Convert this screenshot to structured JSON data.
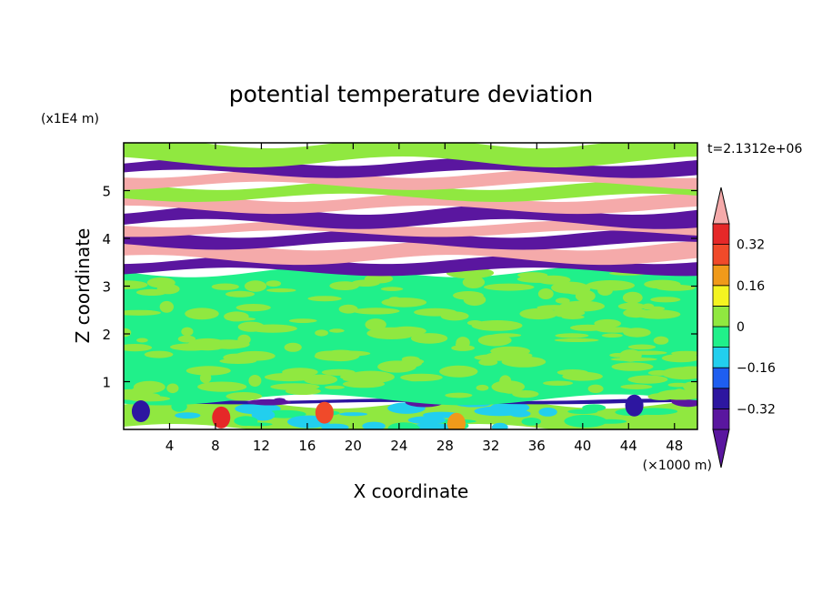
{
  "chart_data": {
    "type": "heatmap",
    "title": "potential temperature deviation",
    "xlabel": "X coordinate",
    "ylabel": "Z coordinate",
    "x_unit": "(×1000 m)",
    "y_unit": "(x1E4 m)",
    "time_label": "t=2.1312e+06",
    "xlim": [
      0,
      50
    ],
    "ylim": [
      0,
      6
    ],
    "x_ticks": [
      "4",
      "8",
      "12",
      "16",
      "20",
      "24",
      "28",
      "32",
      "36",
      "40",
      "44",
      "48"
    ],
    "y_ticks": [
      "1",
      "2",
      "3",
      "4",
      "5"
    ],
    "colorbar": {
      "labels": [
        "0.32",
        "0.16",
        "0",
        "−0.16",
        "−0.32"
      ],
      "label_values": [
        0.32,
        0.16,
        0,
        -0.16,
        -0.32
      ],
      "levels": [
        -0.4,
        -0.32,
        -0.24,
        -0.16,
        -0.08,
        0,
        0.08,
        0.16,
        0.24,
        0.32,
        0.4
      ],
      "colors": [
        "#5a169f",
        "#2d16a0",
        "#1e5ef0",
        "#22cfee",
        "#20f08a",
        "#90e840",
        "#f4f421",
        "#f09a1a",
        "#f04a2a",
        "#e52828",
        "#f5aaaa"
      ],
      "under_color": "#5a169f",
      "over_color": "#f5aaaa"
    },
    "bands": [
      {
        "z": [
          0.0,
          0.55
        ],
        "dominant": "#90e840",
        "secondary": [
          "#20f08a",
          "#22cfee"
        ]
      },
      {
        "z": [
          0.55,
          0.62
        ],
        "dominant": "#2d16a0",
        "secondary": [
          "#5a169f"
        ]
      },
      {
        "z": [
          0.62,
          3.3
        ],
        "dominant": "#20f08a",
        "secondary": [
          "#90e840"
        ]
      },
      {
        "z": [
          3.3,
          3.55
        ],
        "dominant": "#5a169f"
      },
      {
        "z": [
          3.55,
          3.85
        ],
        "dominant": "#f5aaaa"
      },
      {
        "z": [
          3.85,
          4.1
        ],
        "dominant": "#5a169f"
      },
      {
        "z": [
          4.1,
          4.3
        ],
        "dominant": "#f5aaaa"
      },
      {
        "z": [
          4.3,
          4.6
        ],
        "dominant": "#5a169f"
      },
      {
        "z": [
          4.6,
          4.85
        ],
        "dominant": "#f5aaaa"
      },
      {
        "z": [
          4.85,
          5.1
        ],
        "dominant": "#90e840"
      },
      {
        "z": [
          5.1,
          5.35
        ],
        "dominant": "#f5aaaa"
      },
      {
        "z": [
          5.35,
          5.6
        ],
        "dominant": "#5a169f"
      },
      {
        "z": [
          5.6,
          6.0
        ],
        "dominant": "#90e840"
      }
    ],
    "hot_spots": [
      {
        "x": 8.5,
        "z": 0.25,
        "color": "#e52828"
      },
      {
        "x": 17.5,
        "z": 0.35,
        "color": "#f04a2a"
      },
      {
        "x": 29,
        "z": 0.12,
        "color": "#f09a1a"
      },
      {
        "x": 1.5,
        "z": 0.38,
        "color": "#2d16a0"
      },
      {
        "x": 44.5,
        "z": 0.5,
        "color": "#2d16a0"
      }
    ]
  }
}
